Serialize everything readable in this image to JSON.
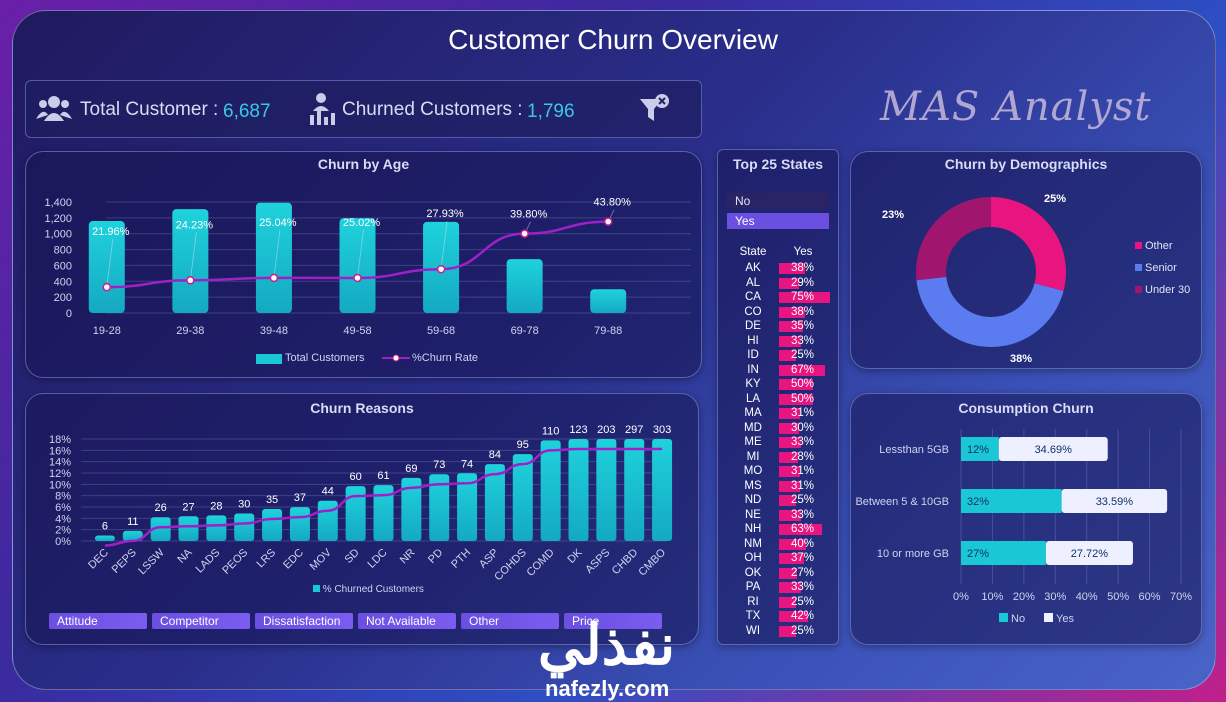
{
  "title": "Customer Churn Overview",
  "kpi": {
    "total_label": "Total Customer :",
    "total_value": "6,687",
    "churned_label": "Churned Customers :",
    "churned_value": "1,796"
  },
  "logo_text": "MAS Analyst",
  "watermark": {
    "arabic": "نفذلي",
    "latin": "nafezly.com"
  },
  "colors": {
    "teal": "#19c8d4",
    "magenta": "#e8147f",
    "purple": "#9b2bd4",
    "blue": "#5b7cf0"
  },
  "age": {
    "title": "Churn by Age",
    "legend_bar": "Total Customers",
    "legend_line": "%Churn Rate"
  },
  "reasons": {
    "title": "Churn Reasons",
    "legend": "% Churned Customers",
    "slicers": [
      "Attitude",
      "Competitor",
      "Dissatisfaction",
      "Not Available",
      "Other",
      "Price"
    ]
  },
  "states": {
    "title": "Top 25 States",
    "filter_no": "No",
    "filter_yes": "Yes",
    "col_state": "State",
    "col_yes": "Yes",
    "rows": [
      {
        "state": "AK",
        "value": "38%",
        "pct": 38
      },
      {
        "state": "AL",
        "value": "29%",
        "pct": 29
      },
      {
        "state": "CA",
        "value": "75%",
        "pct": 75
      },
      {
        "state": "CO",
        "value": "38%",
        "pct": 38
      },
      {
        "state": "DE",
        "value": "35%",
        "pct": 35
      },
      {
        "state": "HI",
        "value": "33%",
        "pct": 33
      },
      {
        "state": "ID",
        "value": "25%",
        "pct": 25
      },
      {
        "state": "IN",
        "value": "67%",
        "pct": 67
      },
      {
        "state": "KY",
        "value": "50%",
        "pct": 50
      },
      {
        "state": "LA",
        "value": "50%",
        "pct": 50
      },
      {
        "state": "MA",
        "value": "31%",
        "pct": 31
      },
      {
        "state": "MD",
        "value": "30%",
        "pct": 30
      },
      {
        "state": "ME",
        "value": "33%",
        "pct": 33
      },
      {
        "state": "MI",
        "value": "28%",
        "pct": 28
      },
      {
        "state": "MO",
        "value": "31%",
        "pct": 31
      },
      {
        "state": "MS",
        "value": "31%",
        "pct": 31
      },
      {
        "state": "ND",
        "value": "25%",
        "pct": 25
      },
      {
        "state": "NE",
        "value": "33%",
        "pct": 33
      },
      {
        "state": "NH",
        "value": "63%",
        "pct": 63
      },
      {
        "state": "NM",
        "value": "40%",
        "pct": 40
      },
      {
        "state": "OH",
        "value": "37%",
        "pct": 37
      },
      {
        "state": "OK",
        "value": "27%",
        "pct": 27
      },
      {
        "state": "PA",
        "value": "33%",
        "pct": 33
      },
      {
        "state": "RI",
        "value": "25%",
        "pct": 25
      },
      {
        "state": "TX",
        "value": "42%",
        "pct": 42
      },
      {
        "state": "WI",
        "value": "25%",
        "pct": 25
      }
    ]
  },
  "demographics": {
    "title": "Churn by Demographics"
  },
  "consumption": {
    "title": "Consumption Churn"
  },
  "chart_data": [
    {
      "id": "age",
      "type": "bar",
      "title": "Churn by Age",
      "categories": [
        "19-28",
        "29-38",
        "39-48",
        "49-58",
        "59-68",
        "69-78",
        "79-88"
      ],
      "series": [
        {
          "name": "Total Customers",
          "type": "bar",
          "values": [
            1160,
            1310,
            1390,
            1195,
            1150,
            680,
            300
          ]
        },
        {
          "name": "%Churn Rate",
          "type": "line",
          "values": [
            21.96,
            24.23,
            25.04,
            25.02,
            27.93,
            39.8,
            43.8
          ],
          "labels": [
            "21.96%",
            "24.23%",
            "25.04%",
            "25.02%",
            "27.93%",
            "39.80%",
            "43.80%"
          ]
        }
      ],
      "ylim": [
        0,
        1400
      ],
      "yticks": [
        "0",
        "200",
        "400",
        "600",
        "800",
        "1,000",
        "1,200",
        "1,400"
      ],
      "legend": "bottom"
    },
    {
      "id": "reasons",
      "type": "bar",
      "title": "Churn Reasons",
      "categories": [
        "DEC",
        "PEPS",
        "LSSW",
        "NA",
        "LADS",
        "PEOS",
        "LRS",
        "EDC",
        "MOV",
        "SD",
        "LDC",
        "NR",
        "PD",
        "PTH",
        "ASP",
        "COHDS",
        "COMD",
        "DK",
        "ASPS",
        "CHBD",
        "CMBO"
      ],
      "series": [
        {
          "name": "% Churned Customers",
          "type": "bar",
          "values": [
            6,
            11,
            26,
            27,
            28,
            30,
            35,
            37,
            44,
            60,
            61,
            69,
            73,
            74,
            84,
            95,
            110,
            123,
            203,
            297,
            303
          ]
        }
      ],
      "ylim": [
        0,
        18
      ],
      "yticks": [
        "0%",
        "2%",
        "4%",
        "6%",
        "8%",
        "10%",
        "12%",
        "14%",
        "16%",
        "18%"
      ],
      "legend": "bottom"
    },
    {
      "id": "demographics",
      "type": "pie",
      "title": "Churn by Demographics",
      "slices": [
        {
          "name": "Other",
          "value": 25,
          "label": "25%",
          "color": "#e8147f"
        },
        {
          "name": "Senior",
          "value": 38,
          "label": "38%",
          "color": "#5b7cf0"
        },
        {
          "name": "Under 30",
          "value": 23,
          "label": "23%",
          "color": "#a0166e"
        }
      ],
      "legend": "right"
    },
    {
      "id": "consumption",
      "type": "bar",
      "title": "Consumption Churn",
      "orientation": "horizontal",
      "categories": [
        "Lessthan 5GB",
        "Between 5 & 10GB",
        "10 or more GB"
      ],
      "series": [
        {
          "name": "No",
          "values": [
            12,
            32,
            27
          ],
          "labels": [
            "12%",
            "32%",
            "27%"
          ],
          "color": "#19c8d4"
        },
        {
          "name": "Yes",
          "values": [
            34.69,
            33.59,
            27.72
          ],
          "labels": [
            "34.69%",
            "33.59%",
            "27.72%"
          ],
          "color": "#eef0ff"
        }
      ],
      "xlim": [
        0,
        70
      ],
      "xticks": [
        "0%",
        "10%",
        "20%",
        "30%",
        "40%",
        "50%",
        "60%",
        "70%"
      ],
      "legend": "bottom"
    }
  ]
}
